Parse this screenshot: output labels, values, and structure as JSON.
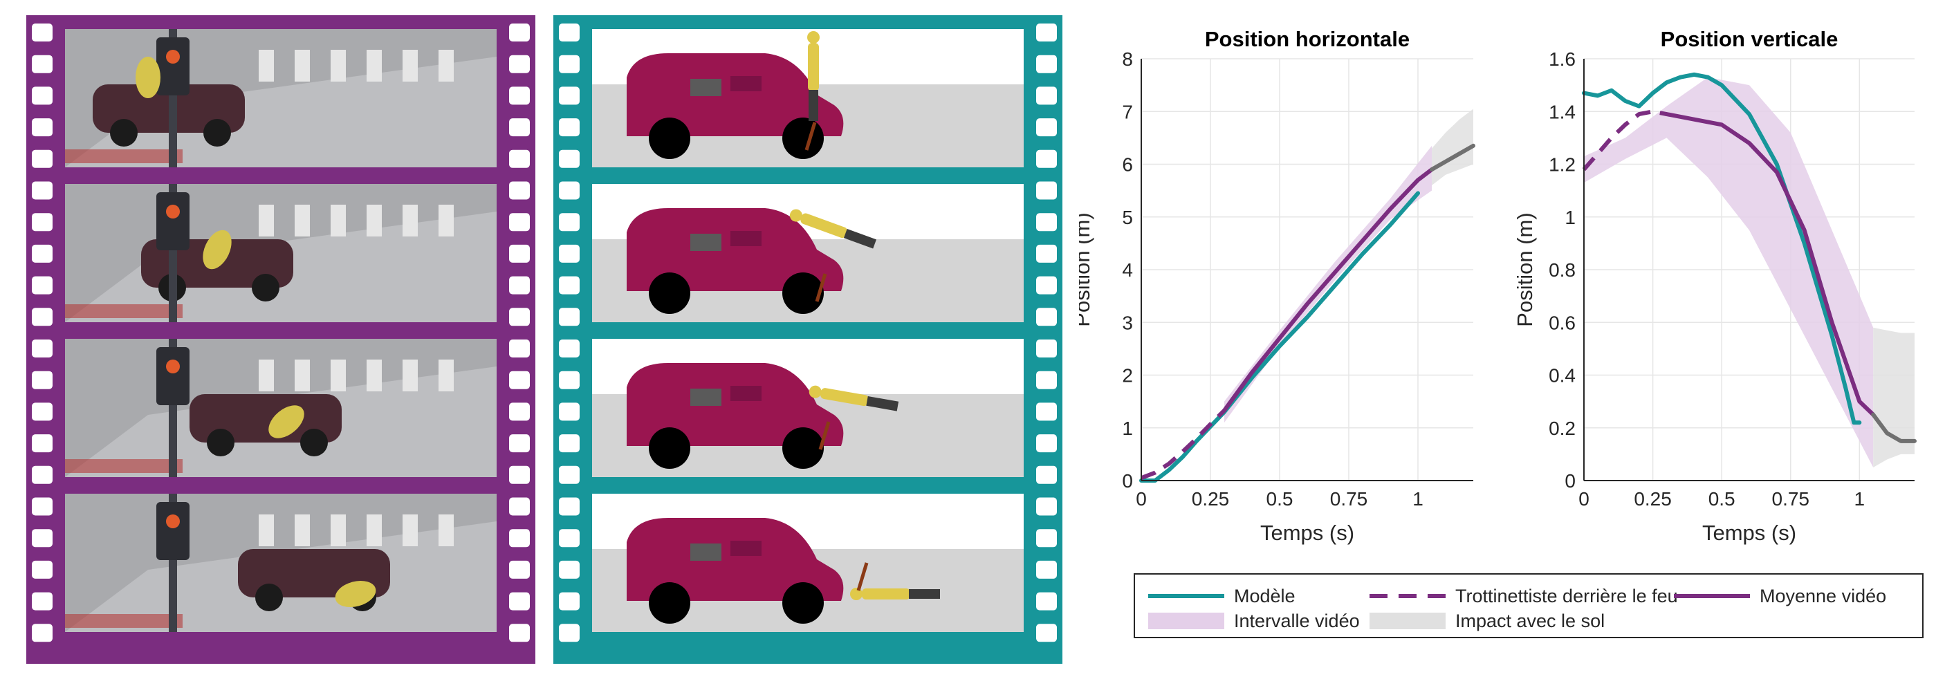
{
  "colors": {
    "left_film": "#7b2d80",
    "right_film": "#17969a",
    "modele": "#17969a",
    "trottinettiste": "#7b2d80",
    "moyenne": "#7b2d80",
    "intervalle_fill": "#e4cfe9",
    "impact_fill": "#e0e0e0",
    "impact_line": "#707070",
    "car": "#9a1550",
    "road": "#d4d4d4"
  },
  "filmstrips": [
    {
      "name": "video-frames",
      "frames": 4,
      "content": "camera-stills"
    },
    {
      "name": "model-frames",
      "frames": 4,
      "content": "simulation-renders"
    }
  ],
  "chart_data": [
    {
      "type": "line",
      "title": "Position horizontale",
      "xlabel": "Temps (s)",
      "ylabel": "Position (m)",
      "xlim": [
        0,
        1.2
      ],
      "ylim": [
        0,
        8
      ],
      "xticks": [
        "0",
        "0.25",
        "0.5",
        "0.75",
        "1"
      ],
      "yticks": [
        "0",
        "1",
        "2",
        "3",
        "4",
        "5",
        "6",
        "7",
        "8"
      ],
      "grid": true,
      "series": [
        {
          "name": "Modèle",
          "x": [
            0,
            0.05,
            0.1,
            0.15,
            0.2,
            0.3,
            0.4,
            0.5,
            0.6,
            0.7,
            0.8,
            0.9,
            1.0
          ],
          "y": [
            0,
            0,
            0.2,
            0.45,
            0.75,
            1.3,
            1.95,
            2.55,
            3.1,
            3.7,
            4.3,
            4.85,
            5.45
          ]
        },
        {
          "name": "Trottinettiste derrière le feu",
          "x": [
            0,
            0.05,
            0.1,
            0.15,
            0.2,
            0.25,
            0.3
          ],
          "y": [
            0.05,
            0.15,
            0.32,
            0.55,
            0.8,
            1.07,
            1.33
          ]
        },
        {
          "name": "Moyenne vidéo",
          "x": [
            0.3,
            0.4,
            0.5,
            0.6,
            0.7,
            0.8,
            0.9,
            1.0,
            1.05
          ],
          "y": [
            1.33,
            2.05,
            2.7,
            3.35,
            3.95,
            4.55,
            5.15,
            5.7,
            5.9
          ]
        },
        {
          "name": "Impact avec le sol",
          "x": [
            1.05,
            1.1,
            1.15,
            1.2
          ],
          "y": [
            5.9,
            6.05,
            6.2,
            6.35
          ]
        }
      ],
      "bands": [
        {
          "name": "Intervalle vidéo",
          "x": [
            0.3,
            0.5,
            0.7,
            0.9,
            1.05
          ],
          "lower": [
            1.1,
            2.55,
            3.8,
            4.95,
            5.5
          ],
          "upper": [
            1.5,
            2.85,
            4.15,
            5.35,
            6.35
          ]
        },
        {
          "name": "Impact avec le sol",
          "x": [
            1.05,
            1.1,
            1.15,
            1.2
          ],
          "lower": [
            5.6,
            5.8,
            5.9,
            6.0
          ],
          "upper": [
            6.3,
            6.6,
            6.85,
            7.05
          ]
        }
      ]
    },
    {
      "type": "line",
      "title": "Position verticale",
      "xlabel": "Temps (s)",
      "ylabel": "Position (m)",
      "xlim": [
        0,
        1.2
      ],
      "ylim": [
        0,
        1.6
      ],
      "xticks": [
        "0",
        "0.25",
        "0.5",
        "0.75",
        "1"
      ],
      "yticks": [
        "0",
        "0.2",
        "0.4",
        "0.6",
        "0.8",
        "1",
        "1.2",
        "1.4",
        "1.6"
      ],
      "grid": true,
      "series": [
        {
          "name": "Modèle",
          "x": [
            0,
            0.05,
            0.1,
            0.15,
            0.2,
            0.25,
            0.3,
            0.35,
            0.4,
            0.45,
            0.5,
            0.6,
            0.7,
            0.8,
            0.9,
            0.95,
            0.98,
            1.0
          ],
          "y": [
            1.47,
            1.46,
            1.48,
            1.44,
            1.42,
            1.47,
            1.51,
            1.53,
            1.54,
            1.53,
            1.5,
            1.39,
            1.2,
            0.9,
            0.55,
            0.35,
            0.22,
            0.22
          ]
        },
        {
          "name": "Trottinettiste derrière le feu",
          "x": [
            0,
            0.05,
            0.1,
            0.15,
            0.2,
            0.25,
            0.3
          ],
          "y": [
            1.18,
            1.24,
            1.3,
            1.35,
            1.39,
            1.4,
            1.39
          ]
        },
        {
          "name": "Moyenne vidéo",
          "x": [
            0.3,
            0.4,
            0.5,
            0.6,
            0.7,
            0.8,
            0.9,
            1.0,
            1.05
          ],
          "y": [
            1.39,
            1.37,
            1.35,
            1.28,
            1.17,
            0.95,
            0.6,
            0.3,
            0.25
          ]
        },
        {
          "name": "Impact avec le sol",
          "x": [
            1.05,
            1.1,
            1.15,
            1.2
          ],
          "y": [
            0.25,
            0.18,
            0.15,
            0.15
          ]
        }
      ],
      "bands": [
        {
          "name": "Intervalle vidéo",
          "x": [
            0,
            0.15,
            0.3,
            0.45,
            0.6,
            0.75,
            0.9,
            1.05
          ],
          "lower": [
            1.13,
            1.22,
            1.3,
            1.15,
            0.95,
            0.65,
            0.35,
            0.05
          ],
          "upper": [
            1.23,
            1.3,
            1.42,
            1.53,
            1.5,
            1.32,
            0.95,
            0.58
          ]
        },
        {
          "name": "Impact avec le sol",
          "x": [
            1.05,
            1.1,
            1.15,
            1.2
          ],
          "lower": [
            0.05,
            0.08,
            0.1,
            0.1
          ],
          "upper": [
            0.58,
            0.57,
            0.56,
            0.56
          ]
        }
      ]
    }
  ],
  "legend": {
    "placement": "bottom",
    "entries": [
      {
        "label": "Modèle",
        "kind": "line",
        "color_key": "modele"
      },
      {
        "label": "Trottinettiste derrière le feu",
        "kind": "dash",
        "color_key": "trottinettiste"
      },
      {
        "label": "Moyenne vidéo",
        "kind": "line",
        "color_key": "moyenne"
      },
      {
        "label": "Intervalle vidéo",
        "kind": "patch",
        "color_key": "intervalle_fill"
      },
      {
        "label": "Impact avec le sol",
        "kind": "patch",
        "color_key": "impact_fill"
      }
    ]
  }
}
